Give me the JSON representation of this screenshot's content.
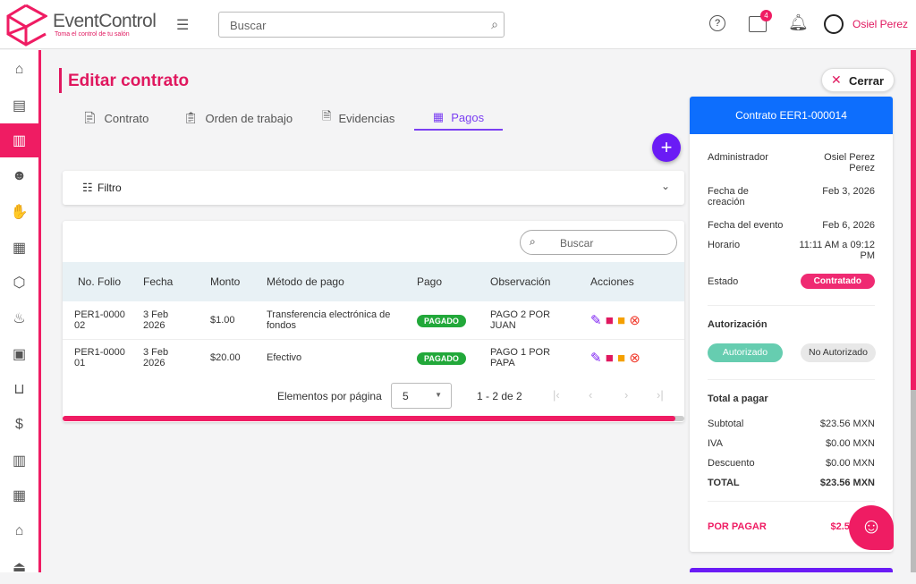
{
  "app": {
    "name": "EventControl",
    "tagline": "Toma el control de tu salón"
  },
  "header": {
    "search_placeholder": "Buscar",
    "notification_count": "4",
    "user_name": "Osiel Perez"
  },
  "sidebar": {
    "items": [
      "home",
      "documents",
      "contract",
      "users",
      "handshake",
      "inventory",
      "package",
      "cake",
      "furniture",
      "basket",
      "cash",
      "warehouse",
      "building",
      "store",
      "bank"
    ],
    "active_index": 2
  },
  "page": {
    "title": "Editar contrato",
    "close_label": "Cerrar"
  },
  "tabs": [
    {
      "label": "Contrato"
    },
    {
      "label": "Orden de trabajo"
    },
    {
      "label": "Evidencias"
    },
    {
      "label": "Pagos",
      "active": true
    }
  ],
  "filter": {
    "label": "Filtro"
  },
  "table": {
    "search_placeholder": "Buscar",
    "columns": [
      "No. Folio",
      "Fecha",
      "Monto",
      "Método de pago",
      "Pago",
      "Observación",
      "Acciones"
    ],
    "rows": [
      {
        "folio": "PER1-000002",
        "fecha": "3 Feb 2026",
        "monto": "$1.00",
        "metodo": "Transferencia electrónica de fondos",
        "pago": "PAGADO",
        "obs": "PAGO 2 POR JUAN"
      },
      {
        "folio": "PER1-000001",
        "fecha": "3 Feb 2026",
        "monto": "$20.00",
        "metodo": "Efectivo",
        "pago": "PAGADO",
        "obs": "PAGO 1 POR PAPA"
      }
    ],
    "pagination": {
      "label": "Elementos por página",
      "per_page": "5",
      "range": "1 - 2 de 2"
    }
  },
  "summary": {
    "title": "Contrato EER1-000014",
    "fields": [
      {
        "k": "Administrador",
        "v": "Osiel Perez Perez"
      },
      {
        "k": "Fecha de creación",
        "v": "Feb 3, 2026"
      },
      {
        "k": "Fecha del evento",
        "v": "Feb 6, 2026"
      },
      {
        "k": "Horario",
        "v": "11:11 AM a 09:12 PM"
      }
    ],
    "estado_label": "Estado",
    "estado": "Contratado",
    "auth_title": "Autorización",
    "auth_yes": "Autorizado",
    "auth_no": "No Autorizado",
    "total_title": "Total a pagar",
    "totals": [
      {
        "k": "Subtotal",
        "v": "$23.56 MXN"
      },
      {
        "k": "IVA",
        "v": "$0.00 MXN"
      },
      {
        "k": "Descuento",
        "v": "$0.00 MXN"
      },
      {
        "k": "TOTAL",
        "v": "$23.56 MXN"
      }
    ],
    "por_pagar_label": "POR PAGAR",
    "por_pagar": "$2.56"
  },
  "colors": {
    "brand": "#ef1c63",
    "accent": "#7b3ff2",
    "header_blue": "#0d6efd",
    "paid": "#22a83a"
  }
}
